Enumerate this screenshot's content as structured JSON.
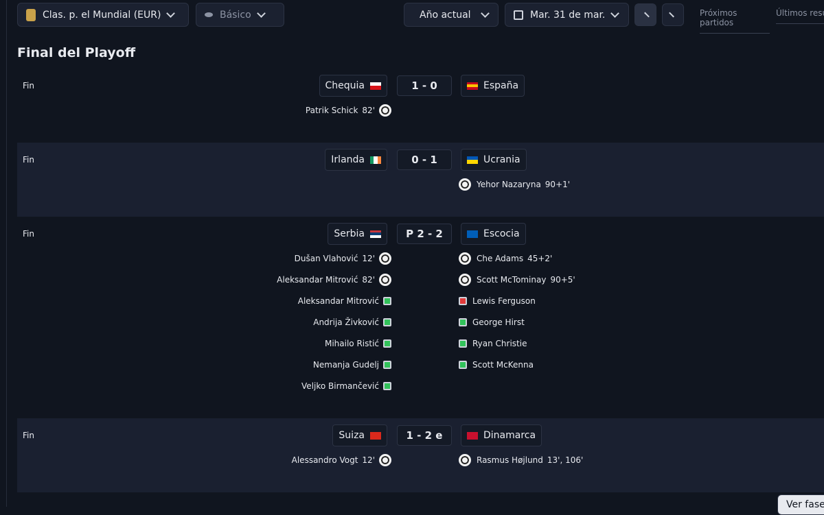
{
  "toolbar": {
    "competition": "Clas. p. el Mundial (EUR)",
    "view": "Básico",
    "period": "Año actual",
    "date": "Mar. 31 de mar.",
    "tabs": [
      "Próximos partidos",
      "Últimos resu"
    ]
  },
  "section_title": "Final del Playoff",
  "matches": [
    {
      "status": "Fin",
      "home": "Chequia",
      "home_flag": {
        "dir": "h",
        "colors": [
          "#ffffff",
          "#d7141a"
        ]
      },
      "score": "1 - 0",
      "away": "España",
      "away_flag": {
        "dir": "h",
        "colors": [
          "#c60b1e",
          "#ffc400",
          "#c60b1e"
        ]
      },
      "home_events": [
        {
          "player": "Patrik Schick",
          "minute": "82'",
          "icon": "goal"
        }
      ],
      "away_events": []
    },
    {
      "status": "Fin",
      "home": "Irlanda",
      "home_flag": {
        "dir": "v",
        "colors": [
          "#169b62",
          "#ffffff",
          "#ff883e"
        ]
      },
      "score": "0 - 1",
      "away": "Ucrania",
      "away_flag": {
        "dir": "h",
        "colors": [
          "#0057b7",
          "#ffd700"
        ]
      },
      "home_events": [],
      "away_events": [
        {
          "player": "Yehor Nazaryna",
          "minute": "90+1'",
          "icon": "goal"
        }
      ]
    },
    {
      "status": "Fin",
      "home": "Serbia",
      "home_flag": {
        "dir": "h",
        "colors": [
          "#c6363c",
          "#0c4076",
          "#ffffff"
        ]
      },
      "score": "P 2 - 2",
      "away": "Escocia",
      "away_flag": {
        "dir": "h",
        "colors": [
          "#005eb8"
        ]
      },
      "home_events": [
        {
          "player": "Dušan Vlahović",
          "minute": "12'",
          "icon": "goal"
        },
        {
          "player": "Aleksandar Mitrović",
          "minute": "82'",
          "icon": "goal"
        },
        {
          "player": "Aleksandar Mitrović",
          "icon": "pen-scored"
        },
        {
          "player": "Andrija Živković",
          "icon": "pen-scored"
        },
        {
          "player": "Mihailo Ristić",
          "icon": "pen-scored"
        },
        {
          "player": "Nemanja Gudelj",
          "icon": "pen-scored"
        },
        {
          "player": "Veljko Birmančević",
          "icon": "pen-scored"
        }
      ],
      "away_events": [
        {
          "player": "Che Adams",
          "minute": "45+2'",
          "icon": "goal"
        },
        {
          "player": "Scott McTominay",
          "minute": "90+5'",
          "icon": "goal"
        },
        {
          "player": "Lewis Ferguson",
          "icon": "pen-missed"
        },
        {
          "player": "George Hirst",
          "icon": "pen-scored"
        },
        {
          "player": "Ryan Christie",
          "icon": "pen-scored"
        },
        {
          "player": "Scott McKenna",
          "icon": "pen-scored"
        }
      ]
    },
    {
      "status": "Fin",
      "home": "Suiza",
      "home_flag": {
        "dir": "h",
        "colors": [
          "#da291c"
        ]
      },
      "score": "1 - 2 e",
      "away": "Dinamarca",
      "away_flag": {
        "dir": "h",
        "colors": [
          "#c8102e"
        ]
      },
      "home_events": [
        {
          "player": "Alessandro Vogt",
          "minute": "12'",
          "icon": "goal"
        }
      ],
      "away_events": [
        {
          "player": "Rasmus Højlund",
          "minute": "13', 106'",
          "icon": "goal"
        }
      ]
    }
  ],
  "footer_button": "Ver fase"
}
